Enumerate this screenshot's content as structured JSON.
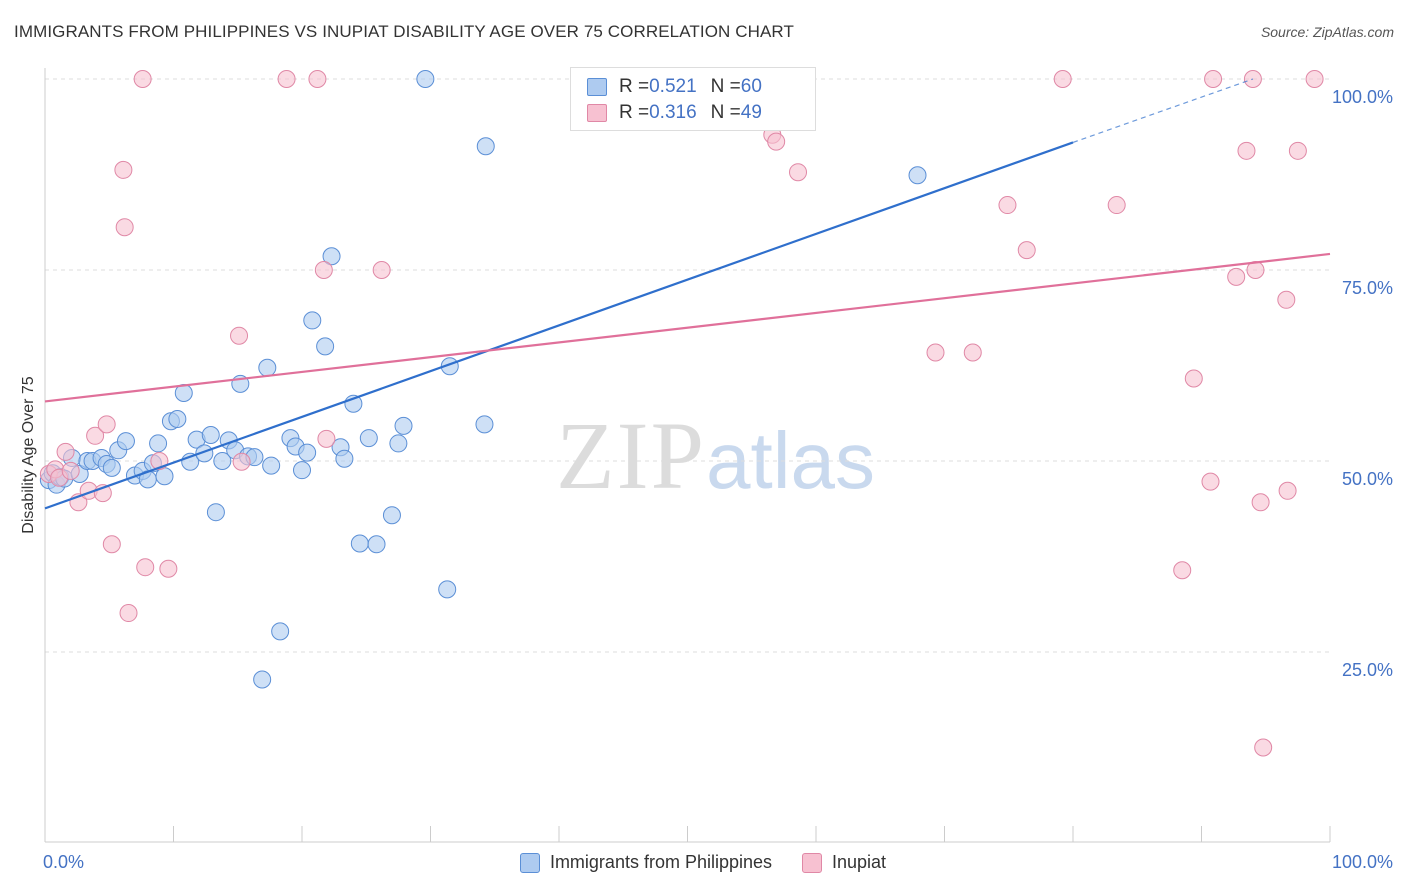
{
  "title": "IMMIGRANTS FROM PHILIPPINES VS INUPIAT DISABILITY AGE OVER 75 CORRELATION CHART",
  "source": "Source: ZipAtlas.com",
  "watermark": {
    "zip": "ZIP",
    "atlas": "atlas"
  },
  "legend_top": [
    {
      "r_label": "R = ",
      "r_value": "0.521",
      "n_label": "N = ",
      "n_value": "60"
    },
    {
      "r_label": "R = ",
      "r_value": "0.316",
      "n_label": "N = ",
      "n_value": "49"
    }
  ],
  "legend_bottom": [
    "Immigrants from Philippines",
    "Inupiat"
  ],
  "colors": {
    "blue_fill": "#aecbf0",
    "blue_stroke": "#5b8fd6",
    "blue_line": "#2f6fcc",
    "pink_fill": "#f7c1d1",
    "pink_stroke": "#e088a6",
    "pink_line": "#e0709a",
    "grid": "#dddddd",
    "tick_text": "#4472c4"
  },
  "chart_data": {
    "type": "scatter",
    "title": "IMMIGRANTS FROM PHILIPPINES VS INUPIAT DISABILITY AGE OVER 75 CORRELATION CHART",
    "xlabel": "",
    "ylabel": "Disability Age Over 75",
    "xlim": [
      0,
      100
    ],
    "ylim": [
      0,
      103
    ],
    "x_tick_labels": [
      "0.0%",
      "100.0%"
    ],
    "y_ticks": [
      25,
      50,
      75,
      100
    ],
    "y_tick_labels": [
      "25.0%",
      "50.0%",
      "75.0%",
      "100.0%"
    ],
    "grid": true,
    "legend_position": "top-center",
    "series": [
      {
        "name": "Immigrants from Philippines",
        "r": 0.521,
        "n": 60,
        "trend": {
          "x": [
            0,
            80
          ],
          "y": [
            43.8,
            91.7
          ],
          "dashed_to": [
            94,
            100
          ]
        },
        "points": [
          [
            0.3,
            47.5
          ],
          [
            0.6,
            48.4
          ],
          [
            0.9,
            46.9
          ],
          [
            1.2,
            47.9
          ],
          [
            1.5,
            47.7
          ],
          [
            2.1,
            50.4
          ],
          [
            2.7,
            48.3
          ],
          [
            3.3,
            50.0
          ],
          [
            3.7,
            50.0
          ],
          [
            4.4,
            50.4
          ],
          [
            4.8,
            49.6
          ],
          [
            5.2,
            49.1
          ],
          [
            5.7,
            51.4
          ],
          [
            6.3,
            52.6
          ],
          [
            7.0,
            48.1
          ],
          [
            7.6,
            48.7
          ],
          [
            8.0,
            47.6
          ],
          [
            8.4,
            49.7
          ],
          [
            8.8,
            52.3
          ],
          [
            9.3,
            48.0
          ],
          [
            9.8,
            55.2
          ],
          [
            10.3,
            55.5
          ],
          [
            10.8,
            58.9
          ],
          [
            11.3,
            49.9
          ],
          [
            11.8,
            52.8
          ],
          [
            12.4,
            51.0
          ],
          [
            12.9,
            53.4
          ],
          [
            13.3,
            43.3
          ],
          [
            13.8,
            50.0
          ],
          [
            14.3,
            52.7
          ],
          [
            14.8,
            51.4
          ],
          [
            15.2,
            60.1
          ],
          [
            15.8,
            50.6
          ],
          [
            16.3,
            50.5
          ],
          [
            16.9,
            21.4
          ],
          [
            17.3,
            62.2
          ],
          [
            17.6,
            49.4
          ],
          [
            18.3,
            27.7
          ],
          [
            19.1,
            53.0
          ],
          [
            19.5,
            51.9
          ],
          [
            20.0,
            48.8
          ],
          [
            20.4,
            51.1
          ],
          [
            20.8,
            68.4
          ],
          [
            21.8,
            65.0
          ],
          [
            22.3,
            76.8
          ],
          [
            23.0,
            51.8
          ],
          [
            23.3,
            50.3
          ],
          [
            24.0,
            57.5
          ],
          [
            24.5,
            39.2
          ],
          [
            25.2,
            53.0
          ],
          [
            25.8,
            39.1
          ],
          [
            27.0,
            42.9
          ],
          [
            27.5,
            52.3
          ],
          [
            27.9,
            54.6
          ],
          [
            29.6,
            100.0
          ],
          [
            31.3,
            33.2
          ],
          [
            31.5,
            62.4
          ],
          [
            34.2,
            54.8
          ],
          [
            34.3,
            91.2
          ],
          [
            67.9,
            87.4
          ]
        ]
      },
      {
        "name": "Inupiat",
        "r": 0.316,
        "n": 49,
        "trend": {
          "x": [
            0,
            100
          ],
          "y": [
            57.8,
            77.1
          ]
        },
        "points": [
          [
            0.3,
            48.3
          ],
          [
            0.8,
            48.9
          ],
          [
            1.1,
            47.8
          ],
          [
            1.6,
            51.2
          ],
          [
            2.0,
            48.7
          ],
          [
            2.6,
            44.6
          ],
          [
            3.4,
            46.1
          ],
          [
            3.9,
            53.3
          ],
          [
            4.5,
            45.8
          ],
          [
            4.8,
            54.8
          ],
          [
            5.2,
            39.1
          ],
          [
            6.1,
            88.1
          ],
          [
            6.2,
            80.6
          ],
          [
            6.5,
            30.1
          ],
          [
            7.6,
            100.0
          ],
          [
            7.8,
            36.1
          ],
          [
            8.9,
            50.0
          ],
          [
            9.6,
            35.9
          ],
          [
            15.1,
            66.4
          ],
          [
            15.3,
            49.9
          ],
          [
            18.8,
            100.0
          ],
          [
            21.2,
            100.0
          ],
          [
            21.9,
            52.9
          ],
          [
            21.7,
            75.0
          ],
          [
            26.2,
            75.0
          ],
          [
            55.7,
            95.6
          ],
          [
            56.6,
            92.7
          ],
          [
            56.9,
            91.8
          ],
          [
            58.6,
            87.8
          ],
          [
            69.3,
            64.2
          ],
          [
            72.2,
            64.2
          ],
          [
            74.9,
            83.5
          ],
          [
            76.4,
            77.6
          ],
          [
            79.2,
            100.0
          ],
          [
            83.4,
            83.5
          ],
          [
            88.5,
            35.7
          ],
          [
            89.4,
            60.8
          ],
          [
            90.7,
            47.3
          ],
          [
            90.9,
            100.0
          ],
          [
            92.7,
            74.1
          ],
          [
            93.5,
            90.6
          ],
          [
            94.0,
            100.0
          ],
          [
            94.2,
            75.0
          ],
          [
            94.6,
            44.6
          ],
          [
            94.8,
            12.5
          ],
          [
            96.6,
            71.1
          ],
          [
            96.7,
            46.1
          ],
          [
            97.5,
            90.6
          ],
          [
            98.8,
            100.0
          ]
        ]
      }
    ]
  }
}
